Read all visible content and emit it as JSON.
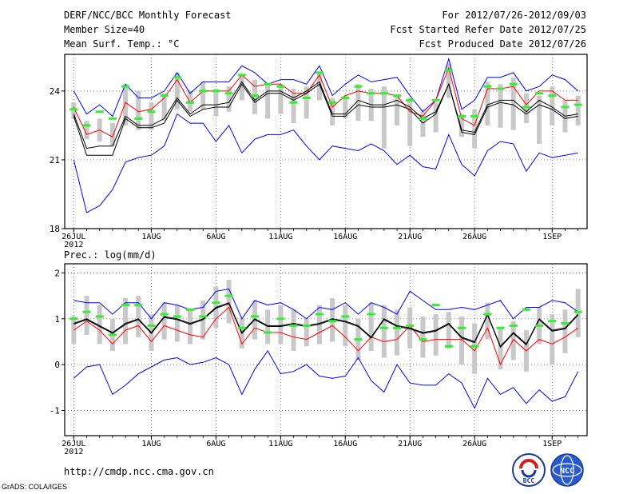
{
  "header": {
    "title": "DERF/NCC/BCC Monthly Forecast",
    "member_size": "Member Size=40",
    "variable": "Mean Surf. Temp.: °C",
    "period": "For 2012/07/26-2012/09/03",
    "fcst_started": "Fcst Started Refer Date 2012/07/25",
    "fcst_produced": "Fcst Produced Date 2012/07/26"
  },
  "footer": {
    "url": "http://cmdp.ncc.cma.gov.cn",
    "credit": "GrADS: COLA/IGES",
    "logo_left_text": "BCC",
    "logo_right_text": "NCC"
  },
  "colors": {
    "max_line": "#0000ff",
    "min_line": "#0000ff",
    "upper_line": "#ff0000",
    "mean_line": "#000000",
    "bars": "#c8c8c8",
    "markers": "#33ee33"
  },
  "chart_data": [
    {
      "type": "line",
      "title": "Mean Surf. Temp.: °C",
      "x_ticks": [
        {
          "day": 0,
          "label": "26JUL",
          "sublabel": "2012"
        },
        {
          "day": 6,
          "label": "1AUG"
        },
        {
          "day": 11,
          "label": "6AUG"
        },
        {
          "day": 16,
          "label": "11AUG"
        },
        {
          "day": 21,
          "label": "16AUG"
        },
        {
          "day": 26,
          "label": "21AUG"
        },
        {
          "day": 31,
          "label": "26AUG"
        },
        {
          "day": 37,
          "label": "1SEP"
        }
      ],
      "xlim": [
        -0.7,
        39.7
      ],
      "ylim": [
        18,
        25.6
      ],
      "y_ticks": [
        18,
        21,
        24
      ],
      "grid": true,
      "series": [
        {
          "name": "max",
          "color": "#0000ff",
          "values": [
            24.0,
            23.0,
            23.4,
            22.9,
            24.3,
            23.7,
            23.7,
            24.0,
            24.8,
            23.9,
            24.4,
            24.4,
            24.4,
            25.1,
            24.8,
            24.3,
            24.5,
            24.5,
            24.3,
            25.1,
            23.8,
            24.3,
            24.7,
            24.4,
            24.5,
            24.6,
            23.8,
            23.1,
            23.6,
            25.4,
            23.2,
            23.6,
            24.6,
            24.6,
            24.8,
            24.0,
            24.2,
            24.7,
            24.5,
            24.0
          ]
        },
        {
          "name": "upper",
          "color": "#ff0000",
          "values": [
            23.3,
            22.1,
            22.3,
            22.0,
            23.5,
            23.1,
            23.2,
            23.7,
            24.5,
            23.5,
            24.0,
            24.0,
            24.0,
            24.7,
            24.2,
            24.3,
            24.3,
            23.9,
            23.9,
            24.7,
            23.3,
            23.8,
            24.0,
            23.9,
            23.9,
            23.8,
            23.1,
            22.9,
            23.6,
            25.0,
            22.8,
            22.5,
            24.1,
            24.1,
            24.2,
            23.4,
            24.0,
            24.0,
            23.6,
            23.6
          ]
        },
        {
          "name": "mean",
          "color": "#000000",
          "values": [
            23.0,
            21.5,
            21.6,
            21.6,
            22.9,
            22.5,
            22.5,
            22.8,
            23.7,
            23.0,
            23.4,
            23.4,
            23.5,
            24.4,
            23.6,
            24.0,
            24.0,
            23.7,
            24.0,
            24.4,
            23.0,
            23.0,
            23.6,
            23.4,
            23.4,
            23.6,
            23.3,
            22.8,
            23.1,
            24.3,
            22.3,
            22.2,
            23.4,
            23.6,
            23.6,
            23.1,
            23.6,
            23.3,
            22.9,
            23.0
          ]
        },
        {
          "name": "lower",
          "color": "#000000",
          "values": [
            22.9,
            21.2,
            21.2,
            21.2,
            22.8,
            22.4,
            22.4,
            22.6,
            23.6,
            22.9,
            23.2,
            23.3,
            23.3,
            24.3,
            23.5,
            23.9,
            23.9,
            23.6,
            23.9,
            24.3,
            22.9,
            22.9,
            23.4,
            23.3,
            23.3,
            23.4,
            23.2,
            22.6,
            23.0,
            24.3,
            22.2,
            22.1,
            23.3,
            23.5,
            23.4,
            23.0,
            23.4,
            23.2,
            22.8,
            22.9
          ]
        },
        {
          "name": "min",
          "color": "#0000ff",
          "values": [
            21.0,
            18.7,
            19.0,
            19.7,
            20.9,
            21.1,
            21.2,
            21.6,
            23.0,
            22.6,
            22.6,
            21.8,
            22.5,
            21.3,
            21.9,
            22.1,
            22.1,
            22.3,
            21.6,
            21.0,
            21.6,
            21.5,
            21.4,
            21.7,
            21.4,
            20.8,
            21.2,
            20.7,
            20.6,
            22.1,
            20.8,
            20.3,
            21.4,
            21.8,
            21.7,
            20.5,
            21.3,
            21.1,
            21.2,
            21.3
          ]
        }
      ],
      "bars": [
        {
          "day": 0,
          "low": 22.8,
          "high": 23.5
        },
        {
          "day": 1,
          "low": 21.9,
          "high": 22.7
        },
        {
          "day": 2,
          "low": 21.8,
          "high": 22.8
        },
        {
          "day": 3,
          "low": 21.6,
          "high": 22.6
        },
        {
          "day": 4,
          "low": 22.5,
          "high": 24.3
        },
        {
          "day": 5,
          "low": 22.3,
          "high": 24.0
        },
        {
          "day": 6,
          "low": 22.3,
          "high": 23.5
        },
        {
          "day": 7,
          "low": 22.7,
          "high": 23.9
        },
        {
          "day": 8,
          "low": 23.2,
          "high": 24.8
        },
        {
          "day": 9,
          "low": 23.1,
          "high": 24.0
        },
        {
          "day": 10,
          "low": 23.2,
          "high": 24.4
        },
        {
          "day": 11,
          "low": 22.9,
          "high": 24.1
        },
        {
          "day": 12,
          "low": 23.1,
          "high": 24.2
        },
        {
          "day": 13,
          "low": 23.6,
          "high": 24.7
        },
        {
          "day": 14,
          "low": 23.0,
          "high": 24.5
        },
        {
          "day": 15,
          "low": 22.8,
          "high": 24.3
        },
        {
          "day": 16,
          "low": 23.0,
          "high": 24.3
        },
        {
          "day": 17,
          "low": 22.6,
          "high": 24.1
        },
        {
          "day": 18,
          "low": 22.8,
          "high": 24.2
        },
        {
          "day": 19,
          "low": 23.6,
          "high": 24.8
        },
        {
          "day": 20,
          "low": 22.5,
          "high": 23.7
        },
        {
          "day": 21,
          "low": 22.8,
          "high": 23.8
        },
        {
          "day": 22,
          "low": 22.7,
          "high": 24.3
        },
        {
          "day": 23,
          "low": 22.7,
          "high": 24.1
        },
        {
          "day": 24,
          "low": 21.5,
          "high": 24.2
        },
        {
          "day": 25,
          "low": 22.5,
          "high": 23.8
        },
        {
          "day": 26,
          "low": 21.6,
          "high": 23.7
        },
        {
          "day": 27,
          "low": 22.0,
          "high": 23.2
        },
        {
          "day": 28,
          "low": 22.2,
          "high": 23.5
        },
        {
          "day": 29,
          "low": 23.7,
          "high": 25.2
        },
        {
          "day": 30,
          "low": 22.0,
          "high": 23.0
        },
        {
          "day": 31,
          "low": 21.5,
          "high": 23.2
        },
        {
          "day": 32,
          "low": 22.5,
          "high": 24.4
        },
        {
          "day": 33,
          "low": 22.4,
          "high": 24.3
        },
        {
          "day": 34,
          "low": 22.3,
          "high": 24.6
        },
        {
          "day": 35,
          "low": 22.6,
          "high": 23.9
        },
        {
          "day": 36,
          "low": 21.7,
          "high": 23.8
        },
        {
          "day": 37,
          "low": 22.5,
          "high": 24.2
        },
        {
          "day": 38,
          "low": 22.2,
          "high": 23.6
        },
        {
          "day": 39,
          "low": 22.5,
          "high": 23.8
        }
      ],
      "markers": [
        23.2,
        22.5,
        23.1,
        22.8,
        24.2,
        22.8,
        23.1,
        23.8,
        24.6,
        23.5,
        24.0,
        24.0,
        23.9,
        24.7,
        23.8,
        24.3,
        24.2,
        23.5,
        23.7,
        24.8,
        23.5,
        23.7,
        24.2,
        23.9,
        23.9,
        23.8,
        23.6,
        22.8,
        23.6,
        24.9,
        22.9,
        22.9,
        24.2,
        24.1,
        24.3,
        23.3,
        23.9,
        23.8,
        23.3,
        23.4
      ]
    },
    {
      "type": "line",
      "title": "Prec.: log(mm/d)",
      "x_ticks": [
        {
          "day": 0,
          "label": "26JUL",
          "sublabel": "2012"
        },
        {
          "day": 6,
          "label": "1AUG"
        },
        {
          "day": 11,
          "label": "6AUG"
        },
        {
          "day": 16,
          "label": "11AUG"
        },
        {
          "day": 21,
          "label": "16AUG"
        },
        {
          "day": 26,
          "label": "21AUG"
        },
        {
          "day": 31,
          "label": "26AUG"
        },
        {
          "day": 37,
          "label": "1SEP"
        }
      ],
      "xlim": [
        -0.7,
        39.7
      ],
      "ylim": [
        -1.55,
        2.2
      ],
      "y_ticks": [
        -1,
        0,
        1,
        2
      ],
      "grid": true,
      "series": [
        {
          "name": "max",
          "color": "#0000ff",
          "values": [
            1.4,
            1.35,
            1.35,
            1.1,
            1.35,
            1.35,
            1.0,
            1.35,
            1.3,
            1.2,
            1.25,
            1.6,
            1.65,
            1.0,
            1.4,
            1.3,
            1.35,
            1.2,
            1.0,
            1.25,
            1.2,
            1.35,
            1.1,
            1.35,
            1.25,
            1.1,
            1.6,
            1.4,
            1.2,
            1.2,
            1.25,
            1.2,
            1.3,
            1.4,
            1.0,
            1.25,
            1.25,
            1.4,
            1.35,
            1.15
          ]
        },
        {
          "name": "upper",
          "color": "#ff0000",
          "values": [
            0.75,
            0.95,
            0.75,
            0.45,
            0.75,
            0.85,
            0.5,
            0.85,
            0.75,
            0.65,
            0.6,
            1.0,
            1.25,
            0.45,
            0.8,
            0.7,
            0.7,
            0.6,
            0.55,
            0.7,
            0.85,
            0.6,
            0.3,
            0.6,
            0.5,
            0.55,
            0.85,
            0.5,
            0.55,
            0.55,
            0.55,
            0.3,
            0.8,
            0.0,
            0.55,
            0.3,
            0.55,
            0.45,
            0.6,
            0.8
          ]
        },
        {
          "name": "mean",
          "color": "#000000",
          "values": [
            0.9,
            1.0,
            0.85,
            0.7,
            0.9,
            1.0,
            0.7,
            1.05,
            1.0,
            0.9,
            1.0,
            1.25,
            1.35,
            0.7,
            1.0,
            0.85,
            0.85,
            0.9,
            0.85,
            0.9,
            1.0,
            0.95,
            0.85,
            0.6,
            1.0,
            0.85,
            0.8,
            0.7,
            0.75,
            0.9,
            0.6,
            0.5,
            1.1,
            0.4,
            0.7,
            0.45,
            1.0,
            0.75,
            0.8,
            1.1
          ]
        },
        {
          "name": "lower",
          "color": "#000000",
          "values": [
            0.88,
            0.98,
            0.83,
            0.68,
            0.88,
            0.98,
            0.68,
            1.03,
            0.98,
            0.88,
            0.98,
            1.23,
            1.33,
            0.68,
            0.98,
            0.83,
            0.83,
            0.88,
            0.83,
            0.88,
            0.98,
            0.93,
            0.83,
            0.58,
            0.98,
            0.83,
            0.78,
            0.68,
            0.73,
            0.88,
            0.58,
            0.48,
            1.08,
            0.38,
            0.68,
            0.43,
            0.98,
            0.73,
            0.78,
            1.08
          ]
        },
        {
          "name": "min",
          "color": "#0000ff",
          "values": [
            -0.3,
            -0.05,
            0.0,
            -0.65,
            -0.45,
            -0.2,
            -0.05,
            0.1,
            0.15,
            0.0,
            0.05,
            0.15,
            0.0,
            -0.65,
            -0.1,
            0.3,
            -0.2,
            -0.15,
            0.0,
            -0.25,
            -0.3,
            -0.25,
            0.15,
            -0.35,
            -0.6,
            0.0,
            -0.4,
            -0.45,
            -0.45,
            -0.2,
            -0.4,
            -0.95,
            -0.3,
            -0.65,
            -0.5,
            -0.85,
            -0.55,
            -0.8,
            -0.7,
            -0.15
          ]
        }
      ],
      "bars": [
        {
          "day": 0,
          "low": 0.45,
          "high": 1.05
        },
        {
          "day": 1,
          "low": 0.65,
          "high": 1.5
        },
        {
          "day": 2,
          "low": 0.45,
          "high": 1.3
        },
        {
          "day": 3,
          "low": 0.3,
          "high": 1.0
        },
        {
          "day": 4,
          "low": 0.45,
          "high": 1.45
        },
        {
          "day": 5,
          "low": 0.6,
          "high": 1.5
        },
        {
          "day": 6,
          "low": 0.3,
          "high": 1.1
        },
        {
          "day": 7,
          "low": 0.55,
          "high": 1.35
        },
        {
          "day": 8,
          "low": 0.5,
          "high": 1.3
        },
        {
          "day": 9,
          "low": 0.45,
          "high": 1.2
        },
        {
          "day": 10,
          "low": 0.55,
          "high": 1.4
        },
        {
          "day": 11,
          "low": 0.8,
          "high": 1.7
        },
        {
          "day": 12,
          "low": 0.9,
          "high": 1.85
        },
        {
          "day": 13,
          "low": 0.35,
          "high": 1.0
        },
        {
          "day": 14,
          "low": 0.55,
          "high": 1.4
        },
        {
          "day": 15,
          "low": 0.45,
          "high": 1.2
        },
        {
          "day": 16,
          "low": 0.45,
          "high": 1.3
        },
        {
          "day": 17,
          "low": 0.3,
          "high": 1.2
        },
        {
          "day": 18,
          "low": 0.4,
          "high": 1.0
        },
        {
          "day": 19,
          "low": 0.45,
          "high": 1.3
        },
        {
          "day": 20,
          "low": 0.5,
          "high": 1.45
        },
        {
          "day": 21,
          "low": 0.4,
          "high": 1.3
        },
        {
          "day": 22,
          "low": 0.1,
          "high": 1.0
        },
        {
          "day": 23,
          "low": 0.3,
          "high": 1.35
        },
        {
          "day": 24,
          "low": 0.15,
          "high": 1.3
        },
        {
          "day": 25,
          "low": 0.2,
          "high": 1.2
        },
        {
          "day": 26,
          "low": 0.35,
          "high": 1.25
        },
        {
          "day": 27,
          "low": 0.15,
          "high": 1.05
        },
        {
          "day": 28,
          "low": 0.2,
          "high": 1.1
        },
        {
          "day": 29,
          "low": 0.35,
          "high": 1.15
        },
        {
          "day": 30,
          "low": 0.0,
          "high": 1.05
        },
        {
          "day": 31,
          "low": -0.2,
          "high": 0.9
        },
        {
          "day": 32,
          "low": 0.55,
          "high": 1.35
        },
        {
          "day": 33,
          "low": -0.1,
          "high": 0.8
        },
        {
          "day": 34,
          "low": 0.1,
          "high": 0.95
        },
        {
          "day": 35,
          "low": -0.15,
          "high": 0.75
        },
        {
          "day": 36,
          "low": 0.45,
          "high": 1.25
        },
        {
          "day": 37,
          "low": 0.0,
          "high": 1.1
        },
        {
          "day": 38,
          "low": 0.25,
          "high": 1.2
        },
        {
          "day": 39,
          "low": 0.6,
          "high": 1.65
        }
      ],
      "markers": [
        1.0,
        1.15,
        1.05,
        0.65,
        1.3,
        1.3,
        0.85,
        1.1,
        1.05,
        1.2,
        1.05,
        1.35,
        1.5,
        0.8,
        1.05,
        0.7,
        1.0,
        0.85,
        0.85,
        1.1,
        0.95,
        1.05,
        0.55,
        1.1,
        0.8,
        0.8,
        0.85,
        0.55,
        1.3,
        0.4,
        0.8,
        0.4,
        1.1,
        0.8,
        0.85,
        1.2,
        0.85,
        0.95,
        0.9,
        1.15
      ]
    }
  ]
}
